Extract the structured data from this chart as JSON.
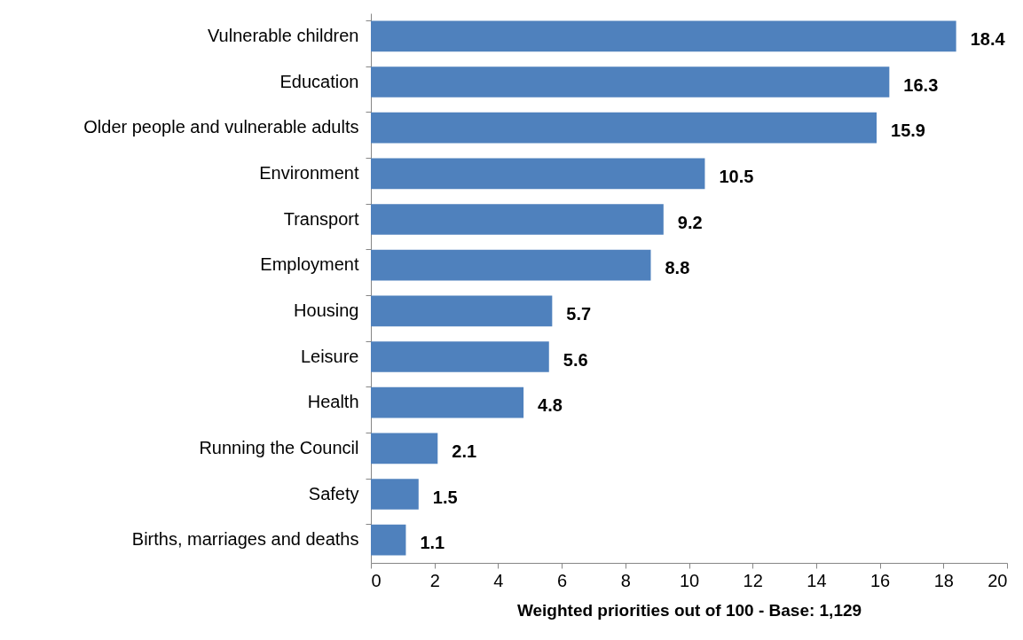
{
  "chart_data": {
    "type": "bar",
    "orientation": "horizontal",
    "xlabel": "Weighted priorities out of 100 - Base: 1,129",
    "categories": [
      "Vulnerable children",
      "Education",
      "Older people and vulnerable adults",
      "Environment",
      "Transport",
      "Employment",
      "Housing",
      "Leisure",
      "Health",
      "Running the Council",
      "Safety",
      "Births, marriages and deaths"
    ],
    "values": [
      18.4,
      16.3,
      15.9,
      10.5,
      9.2,
      8.8,
      5.7,
      5.6,
      4.8,
      2.1,
      1.5,
      1.1
    ],
    "color": "#4f81bd",
    "xlim": [
      0,
      20
    ],
    "xticks": [
      0,
      2,
      4,
      6,
      8,
      10,
      12,
      14,
      16,
      18,
      20
    ],
    "grid": false,
    "data_labels": true
  }
}
